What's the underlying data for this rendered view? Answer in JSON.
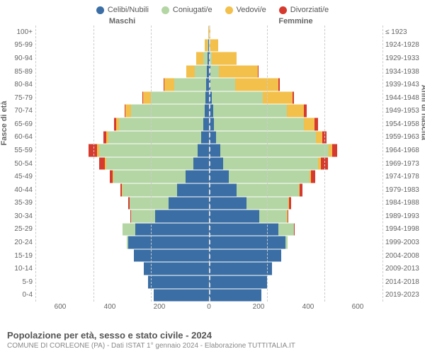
{
  "chart": {
    "type": "population-pyramid",
    "legend": [
      {
        "label": "Celibi/Nubili",
        "color": "#3a6ea5"
      },
      {
        "label": "Coniugati/e",
        "color": "#b4d6a4"
      },
      {
        "label": "Vedovi/e",
        "color": "#f2c04b"
      },
      {
        "label": "Divorziati/e",
        "color": "#d63a2e"
      }
    ],
    "headers": {
      "male": "Maschi",
      "female": "Femmine",
      "right": "≤ 1923"
    },
    "y_axis_label": "Fasce di età",
    "r_axis_label": "Anni di nascita",
    "x_max": 600,
    "x_ticks_left": [
      "600",
      "400",
      "200",
      "0"
    ],
    "x_ticks_right": [
      "200",
      "400",
      "600"
    ],
    "grid_positions_pct": [
      0,
      16.67,
      33.33,
      50,
      66.67,
      83.33,
      100
    ],
    "age_labels": [
      "100+",
      "95-99",
      "90-94",
      "85-89",
      "80-84",
      "75-79",
      "70-74",
      "65-69",
      "60-64",
      "55-59",
      "50-54",
      "45-49",
      "40-44",
      "35-39",
      "30-34",
      "25-29",
      "20-24",
      "15-19",
      "10-14",
      "5-9",
      "0-4"
    ],
    "birth_labels": [
      "≤ 1923",
      "1924-1928",
      "1929-1933",
      "1934-1938",
      "1939-1943",
      "1944-1948",
      "1949-1953",
      "1954-1958",
      "1959-1963",
      "1964-1968",
      "1969-1973",
      "1974-1978",
      "1979-1983",
      "1984-1988",
      "1989-1993",
      "1994-1998",
      "1999-2003",
      "2004-2008",
      "2009-2013",
      "2014-2018",
      "2019-2023"
    ],
    "rows": [
      {
        "m": [
          0,
          0,
          3,
          0
        ],
        "f": [
          0,
          0,
          6,
          0
        ]
      },
      {
        "m": [
          2,
          3,
          10,
          0
        ],
        "f": [
          0,
          2,
          30,
          0
        ]
      },
      {
        "m": [
          5,
          15,
          25,
          0
        ],
        "f": [
          2,
          8,
          85,
          0
        ]
      },
      {
        "m": [
          8,
          40,
          30,
          0
        ],
        "f": [
          4,
          30,
          135,
          2
        ]
      },
      {
        "m": [
          10,
          110,
          35,
          2
        ],
        "f": [
          6,
          85,
          150,
          4
        ]
      },
      {
        "m": [
          12,
          190,
          25,
          3
        ],
        "f": [
          10,
          175,
          105,
          5
        ]
      },
      {
        "m": [
          15,
          255,
          18,
          4
        ],
        "f": [
          14,
          255,
          60,
          8
        ]
      },
      {
        "m": [
          20,
          290,
          12,
          6
        ],
        "f": [
          18,
          310,
          38,
          12
        ]
      },
      {
        "m": [
          28,
          320,
          8,
          8
        ],
        "f": [
          25,
          345,
          22,
          14
        ]
      },
      {
        "m": [
          40,
          340,
          6,
          30
        ],
        "f": [
          38,
          375,
          12,
          18
        ]
      },
      {
        "m": [
          55,
          300,
          4,
          20
        ],
        "f": [
          48,
          330,
          8,
          25
        ]
      },
      {
        "m": [
          80,
          250,
          2,
          10
        ],
        "f": [
          68,
          280,
          5,
          14
        ]
      },
      {
        "m": [
          110,
          190,
          1,
          6
        ],
        "f": [
          95,
          215,
          3,
          10
        ]
      },
      {
        "m": [
          140,
          135,
          0,
          4
        ],
        "f": [
          130,
          145,
          2,
          8
        ]
      },
      {
        "m": [
          185,
          85,
          0,
          2
        ],
        "f": [
          175,
          95,
          1,
          4
        ]
      },
      {
        "m": [
          255,
          45,
          0,
          0
        ],
        "f": [
          240,
          55,
          0,
          2
        ]
      },
      {
        "m": [
          280,
          4,
          0,
          0
        ],
        "f": [
          265,
          8,
          0,
          0
        ]
      },
      {
        "m": [
          260,
          0,
          0,
          0
        ],
        "f": [
          250,
          0,
          0,
          0
        ]
      },
      {
        "m": [
          225,
          0,
          0,
          0
        ],
        "f": [
          218,
          0,
          0,
          0
        ]
      },
      {
        "m": [
          210,
          0,
          0,
          0
        ],
        "f": [
          202,
          0,
          0,
          0
        ]
      },
      {
        "m": [
          190,
          0,
          0,
          0
        ],
        "f": [
          182,
          0,
          0,
          0
        ]
      }
    ],
    "colors": [
      "#3a6ea5",
      "#b4d6a4",
      "#f2c04b",
      "#d63a2e"
    ]
  },
  "footer": {
    "title": "Popolazione per età, sesso e stato civile - 2024",
    "subtitle": "COMUNE DI CORLEONE (PA) - Dati ISTAT 1° gennaio 2024 - Elaborazione TUTTITALIA.IT"
  }
}
